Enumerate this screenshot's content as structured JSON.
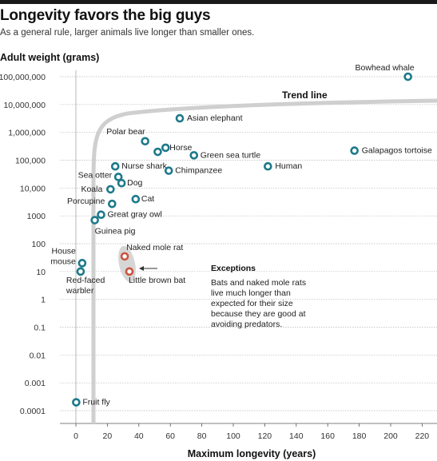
{
  "header": {
    "title": "Longevity favors the big guys",
    "subtitle": "As a general rule, larger animals live longer than smaller ones."
  },
  "colors": {
    "normal": "#1d7a8a",
    "exception": "#c9553d",
    "trend": "#cfcfcf",
    "highlight": "#d6d6d6"
  },
  "chart_data": {
    "type": "scatter",
    "ylabel": "Adult weight (grams)",
    "xlabel": "Maximum longevity (years)",
    "yscale": "log",
    "xlim": [
      -10,
      230
    ],
    "ylim": [
      0.0001,
      200000000
    ],
    "x_ticks": [
      0,
      20,
      40,
      60,
      80,
      100,
      120,
      140,
      160,
      180,
      200,
      220
    ],
    "y_ticks": [
      {
        "value": 100000000,
        "label": "100,000,000"
      },
      {
        "value": 10000000,
        "label": "10,000,000"
      },
      {
        "value": 1000000,
        "label": "1,000,000"
      },
      {
        "value": 100000,
        "label": "100,000"
      },
      {
        "value": 10000,
        "label": "10,000"
      },
      {
        "value": 1000,
        "label": "1000"
      },
      {
        "value": 100,
        "label": "100"
      },
      {
        "value": 10,
        "label": "10"
      },
      {
        "value": 1,
        "label": "1"
      },
      {
        "value": 0.1,
        "label": "0.1"
      },
      {
        "value": 0.01,
        "label": "0.01"
      },
      {
        "value": 0.001,
        "label": "0.001"
      },
      {
        "value": 0.0001,
        "label": "0.0001"
      }
    ],
    "points": [
      {
        "name": "Bowhead whale",
        "x": 211,
        "y": 100000000,
        "exception": false,
        "anchor": "end",
        "dx": 8,
        "dy": -8
      },
      {
        "name": "Asian elephant",
        "x": 66,
        "y": 3200000,
        "exception": false,
        "anchor": "start",
        "dx": 9,
        "dy": 3
      },
      {
        "name": "Polar bear",
        "x": 44,
        "y": 480000,
        "exception": false,
        "anchor": "end",
        "dx": 0,
        "dy": -9
      },
      {
        "name": "Horse",
        "x": 57,
        "y": 280000,
        "exception": false,
        "anchor": "start",
        "dx": 5,
        "dy": 3
      },
      {
        "name": "Galapagos tortoise",
        "x": 177,
        "y": 220000,
        "exception": false,
        "anchor": "start",
        "dx": 9,
        "dy": 3
      },
      {
        "name": "",
        "x": 52,
        "y": 200000,
        "exception": false,
        "anchor": "start",
        "dx": 0,
        "dy": 0
      },
      {
        "name": "Green sea turtle",
        "x": 75,
        "y": 150000,
        "exception": false,
        "anchor": "start",
        "dx": 8,
        "dy": 3
      },
      {
        "name": "Nurse shark",
        "x": 25,
        "y": 60000,
        "exception": false,
        "anchor": "start",
        "dx": 8,
        "dy": 3
      },
      {
        "name": "Human",
        "x": 122,
        "y": 60000,
        "exception": false,
        "anchor": "start",
        "dx": 9,
        "dy": 3
      },
      {
        "name": "Chimpanzee",
        "x": 59,
        "y": 42000,
        "exception": false,
        "anchor": "start",
        "dx": 8,
        "dy": 3
      },
      {
        "name": "Sea otter",
        "x": 27,
        "y": 25000,
        "exception": false,
        "anchor": "end",
        "dx": -8,
        "dy": 1
      },
      {
        "name": "Dog",
        "x": 29,
        "y": 15000,
        "exception": false,
        "anchor": "start",
        "dx": 7,
        "dy": 3
      },
      {
        "name": "Koala",
        "x": 22,
        "y": 9000,
        "exception": false,
        "anchor": "end",
        "dx": -10,
        "dy": 3
      },
      {
        "name": "Cat",
        "x": 38,
        "y": 4000,
        "exception": false,
        "anchor": "start",
        "dx": 7,
        "dy": 3
      },
      {
        "name": "Porcupine",
        "x": 23,
        "y": 2700,
        "exception": false,
        "anchor": "end",
        "dx": -9,
        "dy": 0
      },
      {
        "name": "Great gray owl",
        "x": 16,
        "y": 1100,
        "exception": false,
        "anchor": "start",
        "dx": 8,
        "dy": 3
      },
      {
        "name": "Guinea pig",
        "x": 12,
        "y": 700,
        "exception": false,
        "anchor": "start",
        "dx": 0,
        "dy": 17
      },
      {
        "name": "Naked mole rat",
        "x": 31,
        "y": 35,
        "exception": true,
        "anchor": "start",
        "dx": 2,
        "dy": -8
      },
      {
        "name": "House mouse",
        "x": 4,
        "y": 20,
        "exception": false,
        "anchor": "end",
        "dx": -8,
        "dy": -12
      },
      {
        "name": "Little brown bat",
        "x": 34,
        "y": 10,
        "exception": true,
        "anchor": "start",
        "dx": -1,
        "dy": 14
      },
      {
        "name": "Red-faced warbler",
        "x": 3,
        "y": 10,
        "exception": false,
        "anchor": "start",
        "dx": -18,
        "dy": 14
      },
      {
        "name": "Fruit fly",
        "x": 0.2,
        "y": 0.0002,
        "exception": false,
        "anchor": "start",
        "dx": 8,
        "dy": 3
      }
    ],
    "labels_second_line": {
      "House mouse": "mouse",
      "Red-faced warbler": "warbler"
    },
    "trend_label": "Trend line",
    "annotation": {
      "title": "Exceptions",
      "lines": [
        "Bats and naked mole rats",
        "live much longer than",
        "expected for their size",
        "because they are good at",
        "avoiding predators."
      ]
    }
  }
}
